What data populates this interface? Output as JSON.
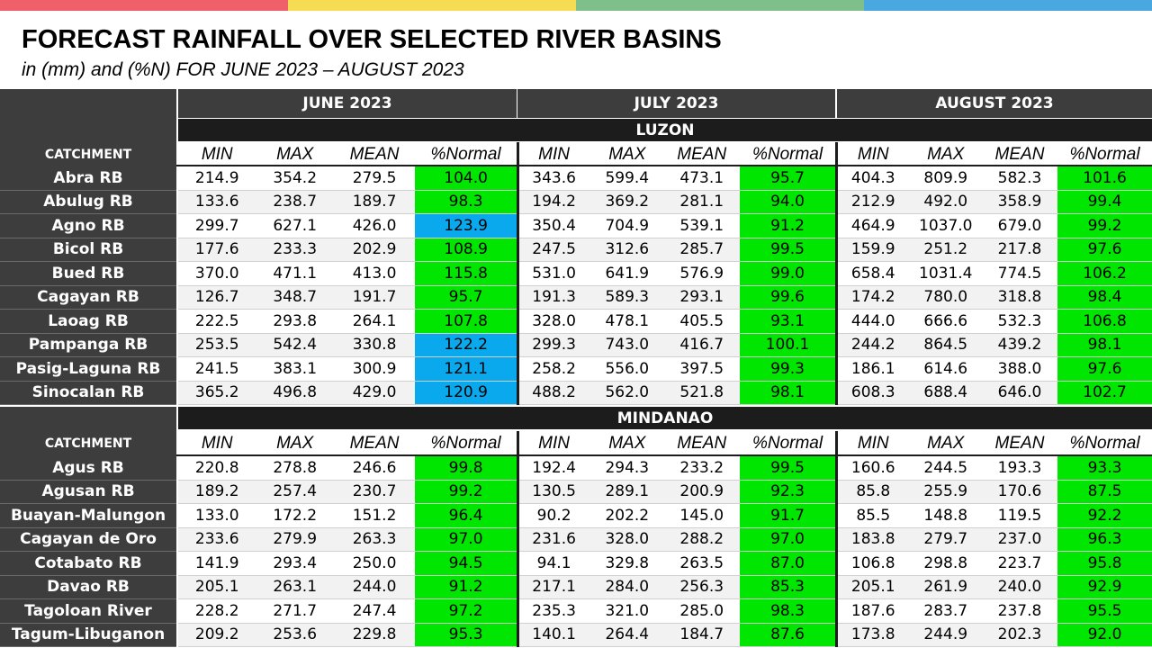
{
  "colors": {
    "topbar": [
      "#f0606a",
      "#f5dc52",
      "#7fbf8a",
      "#4aa8e0"
    ],
    "normal": "#00e600",
    "above_normal": "#0aa8ec"
  },
  "header": {
    "title": "FORECAST RAINFALL OVER SELECTED RIVER BASINS",
    "subtitle": "in (mm) and (%N) FOR JUNE 2023 – AUGUST 2023"
  },
  "months": [
    "JUNE 2023",
    "JULY 2023",
    "AUGUST 2023"
  ],
  "column_headers": [
    "MIN",
    "MAX",
    "MEAN",
    "%Normal"
  ],
  "sections": [
    {
      "region": "LUZON",
      "catchment_label": "CATCHMENT",
      "rows": [
        {
          "name": "Abra RB",
          "values": [
            "214.9",
            "354.2",
            "279.5",
            "104.0",
            "343.6",
            "599.4",
            "473.1",
            "95.7",
            "404.3",
            "809.9",
            "582.3",
            "101.6"
          ],
          "status": [
            "normal",
            "normal",
            "normal"
          ]
        },
        {
          "name": "Abulug RB",
          "values": [
            "133.6",
            "238.7",
            "189.7",
            "98.3",
            "194.2",
            "369.2",
            "281.1",
            "94.0",
            "212.9",
            "492.0",
            "358.9",
            "99.4"
          ],
          "status": [
            "normal",
            "normal",
            "normal"
          ]
        },
        {
          "name": "Agno RB",
          "values": [
            "299.7",
            "627.1",
            "426.0",
            "123.9",
            "350.4",
            "704.9",
            "539.1",
            "91.2",
            "464.9",
            "1037.0",
            "679.0",
            "99.2"
          ],
          "status": [
            "above_normal",
            "normal",
            "normal"
          ]
        },
        {
          "name": "Bicol RB",
          "values": [
            "177.6",
            "233.3",
            "202.9",
            "108.9",
            "247.5",
            "312.6",
            "285.7",
            "99.5",
            "159.9",
            "251.2",
            "217.8",
            "97.6"
          ],
          "status": [
            "normal",
            "normal",
            "normal"
          ]
        },
        {
          "name": "Bued RB",
          "values": [
            "370.0",
            "471.1",
            "413.0",
            "115.8",
            "531.0",
            "641.9",
            "576.9",
            "99.0",
            "658.4",
            "1031.4",
            "774.5",
            "106.2"
          ],
          "status": [
            "normal",
            "normal",
            "normal"
          ]
        },
        {
          "name": "Cagayan RB",
          "values": [
            "126.7",
            "348.7",
            "191.7",
            "95.7",
            "191.3",
            "589.3",
            "293.1",
            "99.6",
            "174.2",
            "780.0",
            "318.8",
            "98.4"
          ],
          "status": [
            "normal",
            "normal",
            "normal"
          ]
        },
        {
          "name": "Laoag RB",
          "values": [
            "222.5",
            "293.8",
            "264.1",
            "107.8",
            "328.0",
            "478.1",
            "405.5",
            "93.1",
            "444.0",
            "666.6",
            "532.3",
            "106.8"
          ],
          "status": [
            "normal",
            "normal",
            "normal"
          ]
        },
        {
          "name": "Pampanga RB",
          "values": [
            "253.5",
            "542.4",
            "330.8",
            "122.2",
            "299.3",
            "743.0",
            "416.7",
            "100.1",
            "244.2",
            "864.5",
            "439.2",
            "98.1"
          ],
          "status": [
            "above_normal",
            "normal",
            "normal"
          ]
        },
        {
          "name": "Pasig-Laguna RB",
          "values": [
            "241.5",
            "383.1",
            "300.9",
            "121.1",
            "258.2",
            "556.0",
            "397.5",
            "99.3",
            "186.1",
            "614.6",
            "388.0",
            "97.6"
          ],
          "status": [
            "above_normal",
            "normal",
            "normal"
          ]
        },
        {
          "name": "Sinocalan RB",
          "values": [
            "365.2",
            "496.8",
            "429.0",
            "120.9",
            "488.2",
            "562.0",
            "521.8",
            "98.1",
            "608.3",
            "688.4",
            "646.0",
            "102.7"
          ],
          "status": [
            "above_normal",
            "normal",
            "normal"
          ]
        }
      ]
    },
    {
      "region": "MINDANAO",
      "catchment_label": "CATCHMENT",
      "rows": [
        {
          "name": "Agus RB",
          "values": [
            "220.8",
            "278.8",
            "246.6",
            "99.8",
            "192.4",
            "294.3",
            "233.2",
            "99.5",
            "160.6",
            "244.5",
            "193.3",
            "93.3"
          ],
          "status": [
            "normal",
            "normal",
            "normal"
          ]
        },
        {
          "name": "Agusan RB",
          "values": [
            "189.2",
            "257.4",
            "230.7",
            "99.2",
            "130.5",
            "289.1",
            "200.9",
            "92.3",
            "85.8",
            "255.9",
            "170.6",
            "87.5"
          ],
          "status": [
            "normal",
            "normal",
            "normal"
          ]
        },
        {
          "name": "Buayan-Malungon",
          "values": [
            "133.0",
            "172.2",
            "151.2",
            "96.4",
            "90.2",
            "202.2",
            "145.0",
            "91.7",
            "85.5",
            "148.8",
            "119.5",
            "92.2"
          ],
          "status": [
            "normal",
            "normal",
            "normal"
          ]
        },
        {
          "name": "Cagayan de Oro",
          "values": [
            "233.6",
            "279.9",
            "263.3",
            "97.0",
            "231.6",
            "328.0",
            "288.2",
            "97.0",
            "183.8",
            "279.7",
            "237.0",
            "96.3"
          ],
          "status": [
            "normal",
            "normal",
            "normal"
          ]
        },
        {
          "name": "Cotabato RB",
          "values": [
            "141.9",
            "293.4",
            "250.0",
            "94.5",
            "94.1",
            "329.8",
            "263.5",
            "87.0",
            "106.8",
            "298.8",
            "223.7",
            "95.8"
          ],
          "status": [
            "normal",
            "normal",
            "normal"
          ]
        },
        {
          "name": "Davao RB",
          "values": [
            "205.1",
            "263.1",
            "244.0",
            "91.2",
            "217.1",
            "284.0",
            "256.3",
            "85.3",
            "205.1",
            "261.9",
            "240.0",
            "92.9"
          ],
          "status": [
            "normal",
            "normal",
            "normal"
          ]
        },
        {
          "name": "Tagoloan River",
          "values": [
            "228.2",
            "271.7",
            "247.4",
            "97.2",
            "235.3",
            "321.0",
            "285.0",
            "98.3",
            "187.6",
            "283.7",
            "237.8",
            "95.5"
          ],
          "status": [
            "normal",
            "normal",
            "normal"
          ]
        },
        {
          "name": "Tagum-Libuganon",
          "values": [
            "209.2",
            "253.6",
            "229.8",
            "95.3",
            "140.1",
            "264.4",
            "184.7",
            "87.6",
            "173.8",
            "244.9",
            "202.3",
            "92.0"
          ],
          "status": [
            "normal",
            "normal",
            "normal"
          ]
        }
      ]
    }
  ]
}
